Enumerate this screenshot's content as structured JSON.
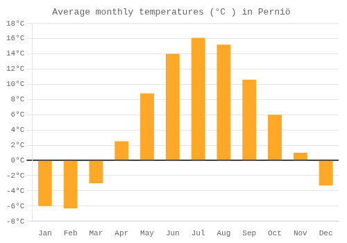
{
  "chart_data": {
    "type": "bar",
    "title": "Average monthly temperatures (°C ) in Perniö",
    "categories": [
      "Jan",
      "Feb",
      "Mar",
      "Apr",
      "May",
      "Jun",
      "Jul",
      "Aug",
      "Sep",
      "Oct",
      "Nov",
      "Dec"
    ],
    "values": [
      -6.0,
      -6.3,
      -3.0,
      2.5,
      8.8,
      14.0,
      16.1,
      15.2,
      10.6,
      6.0,
      1.0,
      -3.3
    ],
    "color": "#FFA726",
    "ylim": [
      -8,
      18
    ],
    "yticks": [
      {
        "value": -8,
        "label": "-8°C"
      },
      {
        "value": -6,
        "label": "-6°C"
      },
      {
        "value": -4,
        "label": "-4°C"
      },
      {
        "value": -2,
        "label": "-2°C"
      },
      {
        "value": 0,
        "label": "0°C"
      },
      {
        "value": 2,
        "label": "2°C"
      },
      {
        "value": 4,
        "label": "4°C"
      },
      {
        "value": 6,
        "label": "6°C"
      },
      {
        "value": 8,
        "label": "8°C"
      },
      {
        "value": 10,
        "label": "10°C"
      },
      {
        "value": 12,
        "label": "12°C"
      },
      {
        "value": 14,
        "label": "14°C"
      },
      {
        "value": 16,
        "label": "16°C"
      },
      {
        "value": 18,
        "label": "18°C"
      }
    ],
    "grid": true
  }
}
